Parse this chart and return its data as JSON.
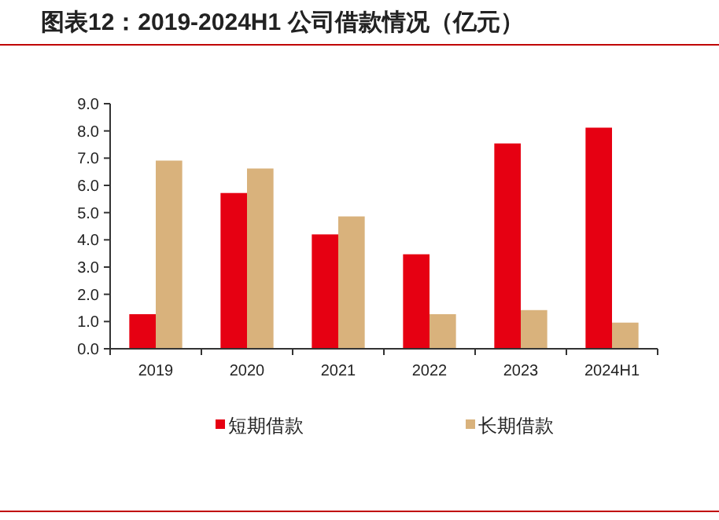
{
  "chart_data": {
    "type": "bar",
    "title": "图表12：2019-2024H1 公司借款情况（亿元）",
    "categories": [
      "2019",
      "2020",
      "2021",
      "2022",
      "2023",
      "2024H1"
    ],
    "series": [
      {
        "name": "短期借款",
        "color": "#e60012",
        "values": [
          1.27,
          5.72,
          4.2,
          3.47,
          7.54,
          8.12
        ]
      },
      {
        "name": "长期借款",
        "color": "#d9b27c",
        "values": [
          6.91,
          6.62,
          4.86,
          1.27,
          1.42,
          0.96
        ]
      }
    ],
    "ylim": [
      0,
      9
    ],
    "yticks": [
      {
        "value": 0,
        "label": "0.0"
      },
      {
        "value": 1,
        "label": "1.0"
      },
      {
        "value": 2,
        "label": "2.0"
      },
      {
        "value": 3,
        "label": "3.0"
      },
      {
        "value": 4,
        "label": "4.0"
      },
      {
        "value": 5,
        "label": "5.0"
      },
      {
        "value": 6,
        "label": "6.0"
      },
      {
        "value": 7,
        "label": "7.0"
      },
      {
        "value": 8,
        "label": "8.0"
      },
      {
        "value": 9,
        "label": "9.0"
      }
    ],
    "grid": false,
    "legend": "bottom"
  }
}
